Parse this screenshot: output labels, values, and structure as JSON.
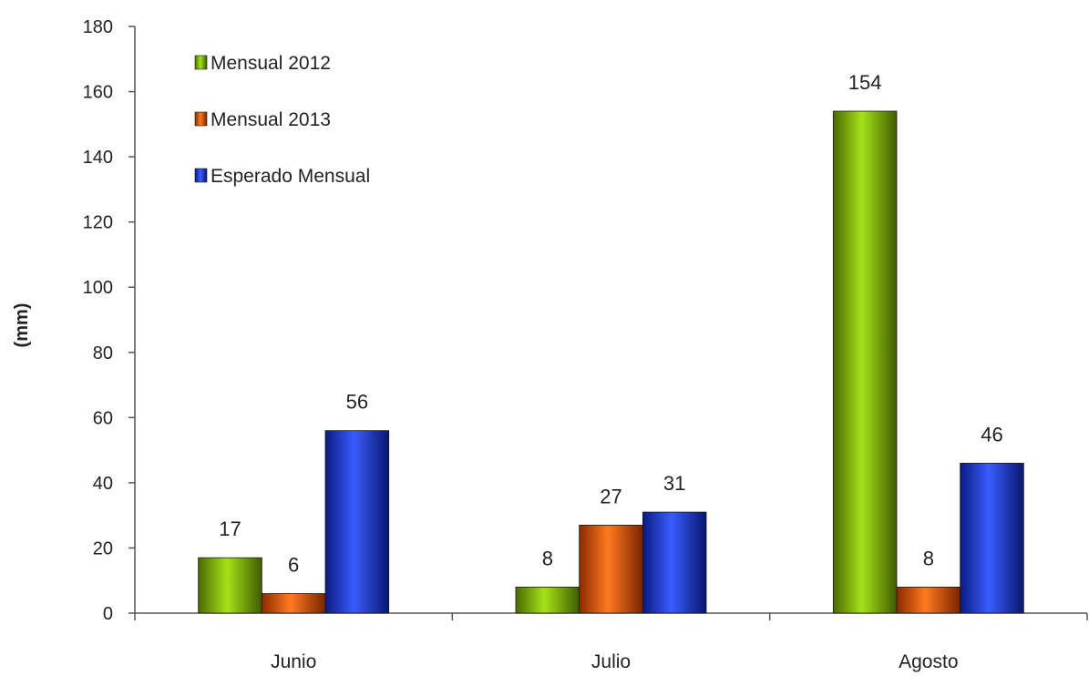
{
  "chart_data": {
    "type": "bar",
    "title": "",
    "xlabel": "",
    "ylabel": "(mm)",
    "ylim": [
      0,
      180
    ],
    "yticks": [
      0,
      20,
      40,
      60,
      80,
      100,
      120,
      140,
      160,
      180
    ],
    "categories": [
      "Junio",
      "Julio",
      "Agosto"
    ],
    "series": [
      {
        "name": "Mensual 2012",
        "color": "#8cc000",
        "values": [
          17,
          8,
          154
        ],
        "labels": [
          "17",
          "8",
          "154"
        ]
      },
      {
        "name": "Mensual 2013",
        "color": "#f06010",
        "values": [
          6,
          27,
          8
        ],
        "labels": [
          "6",
          "27",
          "8"
        ]
      },
      {
        "name": "Esperado Mensual",
        "color": "#2040e0",
        "values": [
          56,
          31,
          46
        ],
        "labels": [
          "56",
          "31",
          "46"
        ]
      }
    ],
    "legend_position": "top-left",
    "grid": false
  }
}
